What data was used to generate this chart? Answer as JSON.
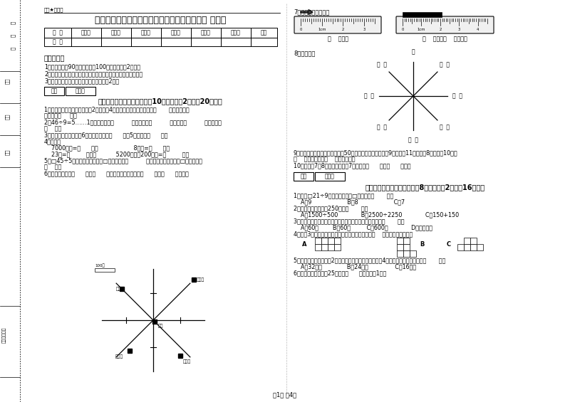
{
  "title": "江苏省实验小学三年级数学下学期能力检测试题 含答案",
  "subtitle": "微密★启用前",
  "bg_color": "#ffffff",
  "text_color": "#000000",
  "table_headers": [
    "题  号",
    "填空题",
    "选择题",
    "判断题",
    "计算题",
    "综合题",
    "应用题",
    "总分"
  ],
  "table_row": [
    "得  分",
    "",
    "",
    "",
    "",
    "",
    "",
    ""
  ],
  "section1_title": "考试须知：",
  "instructions": [
    "1．考试时间：90分钟，满分为100分（含卷面分2分）。",
    "2．请首先按要求在试卷的指定位置填写您的姓名、班级、学号。",
    "3．不要在试卷上乱写乱画，卷面不整洁扣2分。"
  ],
  "section2_header": "一、用心思考，正确填空（共10小题，每题2分，共20分）。",
  "part1_questions": [
    "1．劳动课上做纸花，红红做了2朵纸花，4朵蓝花，红花占纸花总数的（       ）。蓝花占纸",
    "花总数的（     ）。",
    "2．46÷9=5……1中，被除数是（          ），除数是（          ），商是（          ），余数是",
    "（    ）。",
    "3．把一根绳子平均分成6份，每份是它的（      ）。5份是它的（      ）。",
    "4．拨算。",
    "    7000千克=（      ）吨                    8千克=（      ）克",
    "    23吨=（         ）千克           5200千克－200千克=（         ）吨",
    "5．□45÷5，要使商是两位数，□里最大可填（          ），要使商是三位数，□里最小应填",
    "（    ）。",
    "6．小红家在学校（      ）方（      ）米处；小明家在学校（      ）方（      ）米处。"
  ],
  "part2_label": "7．量出钉子的长度。",
  "part2_ruler1_label": "（    ）毫米",
  "part2_ruler2_label": "（    ）厘米（    ）毫米。",
  "part3_label": "8．填一填。",
  "part4_questions": [
    "9．体育老师对第一小组同学进行50米跑测试，成绩如下小红9秒，小丽11秒，小明8秒，小军10秒。",
    "（    ）跑得最快，（    ）跑得最慢。",
    "10．时针在7和8之间，分针指向7，这时是（      ）时（      ）分。"
  ],
  "section3_header": "二、反复比较，慎重选择（共8小题，每题2分，共16分）。",
  "part5_questions": [
    "1．要使□21÷9的商是三位数，□里只能填（       ）。",
    "    A．9                    B．8                    C．7",
    "2．下面的结果刚好是250的是（       ）。",
    "    A．1500÷500             B．2500÷2250             C．150+150",
    "3．时针从上一个数字到相邻的下一个数字，经过的时间是（       ）。",
    "    A．60秒        B．60分         C．600时             D．无法确定",
    "4．下列3个图形中，每个小正方形都一样大，那么（    ）图形的周长最长。",
    "5．一个正方形的边长是2厘米，现在将边长扩大到原来的4倍，现在正方形的周长是（       ）。",
    "    A．32厘米              B．24厘米               C．16厘米",
    "6．平均每个同学体重25千克，（      ）名同学重1吨。"
  ],
  "footer": "第1页 共4页",
  "score_box_label": "得分",
  "evaluator_label": "评卷人"
}
